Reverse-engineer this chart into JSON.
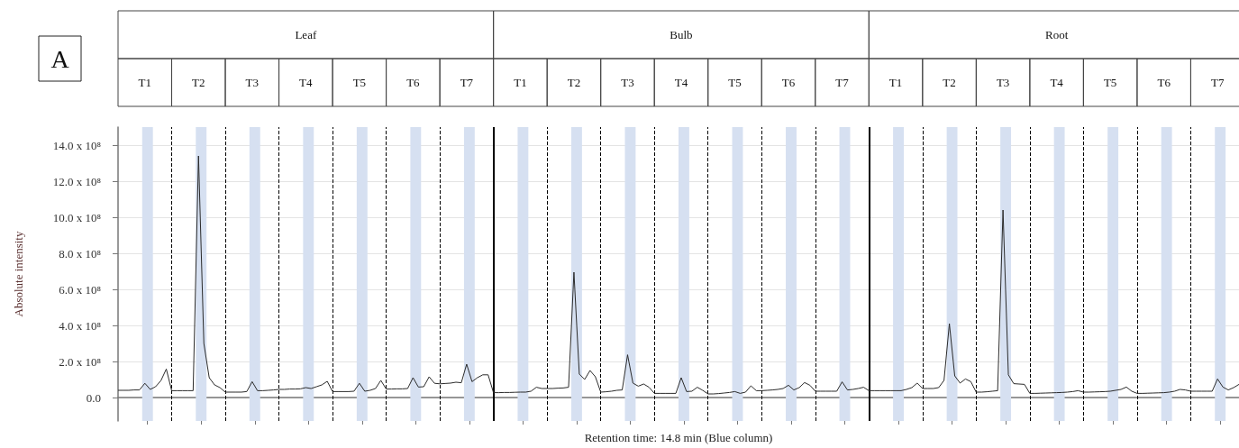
{
  "chart_data": {
    "type": "line",
    "ylabel": "Absolute intensity",
    "xlabel": "Retention time: 14.8 min (Blue column)",
    "annotations": [
      "A",
      "Leaf",
      "Bulb",
      "Root",
      "T1",
      "T2",
      "T3",
      "T4",
      "T5",
      "T6",
      "T7",
      "T1",
      "T2",
      "T3",
      "T4",
      "T5",
      "T6",
      "T7",
      "T1",
      "T2",
      "T3",
      "T4",
      "T5",
      "T6",
      "T7"
    ],
    "categories": [
      null,
      null,
      null,
      null,
      null,
      null,
      null,
      null,
      null,
      null,
      null,
      null,
      null,
      null,
      null,
      null,
      null,
      null,
      null,
      null,
      null,
      null,
      null,
      null,
      null,
      null,
      null,
      null,
      null,
      null,
      null,
      null,
      null,
      null,
      null,
      null,
      null,
      null,
      null,
      null,
      null,
      null,
      null,
      null,
      null,
      null,
      null,
      null,
      null,
      null,
      null,
      null,
      null,
      null,
      null,
      null,
      null,
      null,
      null,
      null,
      null,
      null,
      null,
      null,
      null,
      null,
      null,
      null,
      null,
      null,
      null,
      null,
      null,
      null,
      null,
      null,
      null,
      null,
      null,
      null,
      null,
      null,
      null,
      null,
      null,
      null,
      null,
      null,
      null,
      null,
      null,
      null,
      null,
      null,
      null,
      null,
      null,
      null,
      null,
      null,
      null,
      null,
      null,
      null,
      null,
      null,
      null,
      null,
      null,
      null,
      null,
      null,
      null,
      null,
      null,
      null,
      null,
      null,
      null,
      null,
      null,
      null,
      null,
      null,
      null,
      null,
      null,
      null,
      null,
      null,
      null,
      null,
      null,
      null,
      null,
      null,
      null,
      null,
      null,
      null,
      null,
      null,
      null,
      null,
      null,
      null,
      null,
      null,
      null,
      null,
      null,
      null,
      null,
      null,
      null,
      null,
      null,
      null,
      null,
      null,
      null,
      null,
      null,
      null,
      null,
      null,
      null,
      null,
      null,
      null,
      null,
      null,
      null,
      null,
      null,
      null,
      null,
      null,
      null,
      null,
      null,
      null,
      null,
      null,
      null,
      null,
      null,
      null,
      null,
      null,
      null,
      null,
      null,
      null,
      null,
      null,
      null,
      null,
      null,
      null,
      null,
      null,
      null,
      null,
      null,
      null,
      null,
      null,
      null,
      null
    ],
    "series": [
      {
        "color": "#2b2b2b",
        "values": [
          40000000.0,
          40000000.0,
          40000000.0,
          42000000.0,
          42000000.0,
          79000000.0,
          45000000.0,
          60000000.0,
          94000000.0,
          158000000.0,
          38000000.0,
          38000000.0,
          38000000.0,
          38000000.0,
          38000000.0,
          1340000000.0,
          300000000.0,
          110000000.0,
          70000000.0,
          55000000.0,
          30000000.0,
          30000000.0,
          30000000.0,
          30000000.0,
          33000000.0,
          88000000.0,
          38000000.0,
          38000000.0,
          40000000.0,
          42000000.0,
          45000000.0,
          45000000.0,
          47000000.0,
          47000000.0,
          48000000.0,
          55000000.0,
          50000000.0,
          60000000.0,
          70000000.0,
          90000000.0,
          33000000.0,
          33000000.0,
          33000000.0,
          33000000.0,
          35000000.0,
          79000000.0,
          35000000.0,
          40000000.0,
          50000000.0,
          95000000.0,
          47000000.0,
          47000000.0,
          48000000.0,
          48000000.0,
          50000000.0,
          110000000.0,
          58000000.0,
          60000000.0,
          115000000.0,
          79000000.0,
          76000000.0,
          78000000.0,
          80000000.0,
          85000000.0,
          82000000.0,
          185000000.0,
          88000000.0,
          110000000.0,
          126000000.0,
          126000000.0,
          27000000.0,
          27000000.0,
          28000000.0,
          28000000.0,
          29000000.0,
          30000000.0,
          30000000.0,
          35000000.0,
          57000000.0,
          50000000.0,
          50000000.0,
          50000000.0,
          52000000.0,
          53000000.0,
          57000000.0,
          695000000.0,
          130000000.0,
          100000000.0,
          150000000.0,
          115000000.0,
          30000000.0,
          32000000.0,
          35000000.0,
          40000000.0,
          42000000.0,
          237000000.0,
          80000000.0,
          63000000.0,
          75000000.0,
          57000000.0,
          23000000.0,
          23000000.0,
          23000000.0,
          23000000.0,
          23000000.0,
          110000000.0,
          33000000.0,
          35000000.0,
          57000000.0,
          40000000.0,
          20000000.0,
          20000000.0,
          22000000.0,
          25000000.0,
          28000000.0,
          33000000.0,
          23000000.0,
          30000000.0,
          65000000.0,
          38000000.0,
          38000000.0,
          40000000.0,
          42000000.0,
          45000000.0,
          50000000.0,
          68000000.0,
          42000000.0,
          55000000.0,
          83000000.0,
          68000000.0,
          35000000.0,
          35000000.0,
          35000000.0,
          35000000.0,
          35000000.0,
          87000000.0,
          42000000.0,
          45000000.0,
          50000000.0,
          57000000.0,
          38000000.0,
          38000000.0,
          38000000.0,
          38000000.0,
          38000000.0,
          38000000.0,
          38000000.0,
          45000000.0,
          55000000.0,
          80000000.0,
          50000000.0,
          50000000.0,
          50000000.0,
          55000000.0,
          95000000.0,
          410000000.0,
          120000000.0,
          80000000.0,
          103000000.0,
          88000000.0,
          30000000.0,
          30000000.0,
          32000000.0,
          35000000.0,
          38000000.0,
          1040000000.0,
          126000000.0,
          77000000.0,
          75000000.0,
          73000000.0,
          23000000.0,
          23000000.0,
          24000000.0,
          25000000.0,
          26000000.0,
          27000000.0,
          28000000.0,
          30000000.0,
          33000000.0,
          38000000.0,
          30000000.0,
          30000000.0,
          31000000.0,
          32000000.0,
          33000000.0,
          35000000.0,
          40000000.0,
          45000000.0,
          58000000.0,
          35000000.0,
          23000000.0,
          23000000.0,
          24000000.0,
          25000000.0,
          26000000.0,
          27000000.0,
          30000000.0,
          35000000.0,
          45000000.0,
          42000000.0,
          35000000.0,
          35000000.0,
          35000000.0,
          35000000.0,
          35000000.0,
          103000000.0,
          58000000.0,
          42000000.0,
          55000000.0,
          73000000.0
        ]
      }
    ],
    "ylim": [
      -130000000.0,
      1500000000.0
    ],
    "yticks": [
      {
        "value": 0,
        "label": "0.0"
      },
      {
        "value": 200000000.0,
        "label": "2.0 x 10⁸"
      },
      {
        "value": 400000000.0,
        "label": "4.0 x 10⁸"
      },
      {
        "value": 600000000.0,
        "label": "6.0 x 10⁸"
      },
      {
        "value": 800000000.0,
        "label": "8.0 x 10⁸"
      },
      {
        "value": 1000000000.0,
        "label": "10.0 x 10⁸"
      },
      {
        "value": 1200000000.0,
        "label": "12.0 x 10⁸"
      },
      {
        "value": 1400000000.0,
        "label": "14.0 x 10⁸"
      }
    ],
    "tick_labels": "y",
    "grid": "y",
    "line_style": "solid"
  }
}
